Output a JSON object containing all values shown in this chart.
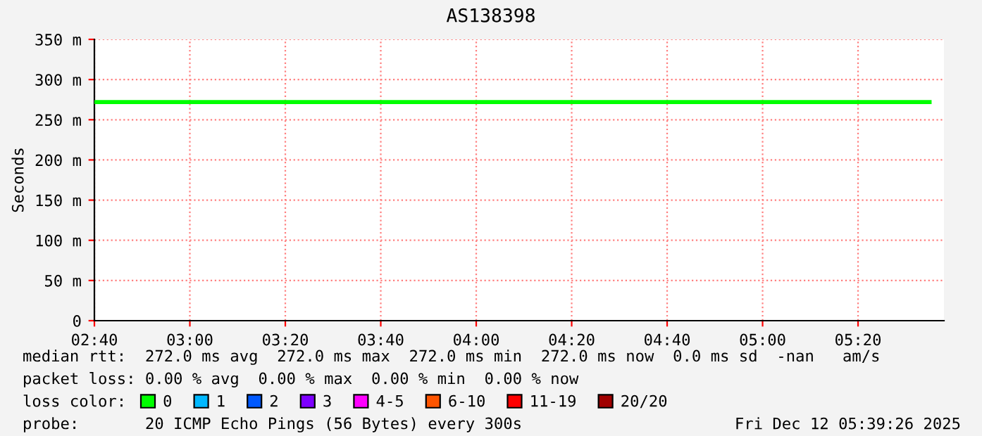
{
  "chart_data": {
    "type": "line",
    "title": "AS138398",
    "ylabel": "Seconds",
    "x": [
      "2025-12-12T02:40",
      "2025-12-12T03:00",
      "2025-12-12T03:20",
      "2025-12-12T03:40",
      "2025-12-12T04:00",
      "2025-12-12T04:20",
      "2025-12-12T04:40",
      "2025-12-12T05:00",
      "2025-12-12T05:20",
      "2025-12-12T05:35"
    ],
    "series": [
      {
        "name": "0",
        "color": "#00ff00",
        "values": [
          272,
          272,
          272,
          272,
          272,
          272,
          272,
          272,
          272,
          272
        ]
      },
      {
        "name": "1",
        "color": "#00b8ff",
        "values": [
          null,
          null,
          null,
          null,
          null,
          null,
          null,
          null,
          null,
          null
        ]
      },
      {
        "name": "2",
        "color": "#0059ff",
        "values": [
          null,
          null,
          null,
          null,
          null,
          null,
          null,
          null,
          null,
          null
        ]
      },
      {
        "name": "3",
        "color": "#7e00ff",
        "values": [
          null,
          null,
          null,
          null,
          null,
          null,
          null,
          null,
          null,
          null
        ]
      },
      {
        "name": "4-5",
        "color": "#ff00ff",
        "values": [
          null,
          null,
          null,
          null,
          null,
          null,
          null,
          null,
          null,
          null
        ]
      },
      {
        "name": "6-10",
        "color": "#ff5500",
        "values": [
          null,
          null,
          null,
          null,
          null,
          null,
          null,
          null,
          null,
          null
        ]
      },
      {
        "name": "11-19",
        "color": "#ff0000",
        "values": [
          null,
          null,
          null,
          null,
          null,
          null,
          null,
          null,
          null,
          null
        ]
      },
      {
        "name": "20/20",
        "color": "#a10000",
        "values": [
          null,
          null,
          null,
          null,
          null,
          null,
          null,
          null,
          null,
          null
        ]
      }
    ],
    "legend_title": "loss color:",
    "legend": "bottom",
    "grid": true,
    "marker": "none",
    "line_style": "solid",
    "xlim": [
      "2025-12-12T02:40",
      "2025-12-12T05:38"
    ],
    "xticks": [
      {
        "value": "2025-12-12T02:40",
        "label": "02:40"
      },
      {
        "value": "2025-12-12T03:00",
        "label": "03:00"
      },
      {
        "value": "2025-12-12T03:20",
        "label": "03:20"
      },
      {
        "value": "2025-12-12T03:40",
        "label": "03:40"
      },
      {
        "value": "2025-12-12T04:00",
        "label": "04:00"
      },
      {
        "value": "2025-12-12T04:20",
        "label": "04:20"
      },
      {
        "value": "2025-12-12T04:40",
        "label": "04:40"
      },
      {
        "value": "2025-12-12T05:00",
        "label": "05:00"
      },
      {
        "value": "2025-12-12T05:20",
        "label": "05:20"
      }
    ],
    "ylim": [
      0,
      350
    ],
    "yticks": [
      0,
      {
        "value": 50,
        "label": "50 m"
      },
      {
        "value": 100,
        "label": "100 m"
      },
      {
        "value": 150,
        "label": "150 m"
      },
      {
        "value": 200,
        "label": "200 m"
      },
      {
        "value": 250,
        "label": "250 m"
      },
      {
        "value": 300,
        "label": "300 m"
      },
      {
        "value": 350,
        "label": "350 m"
      }
    ],
    "annotations": [
      "median rtt:  272.0 ms avg  272.0 ms max  272.0 ms min  272.0 ms now  0.0 ms sd  -nan   am/s",
      "packet loss: 0.00 % avg  0.00 % max  0.00 % min  0.00 % now",
      "probe:       20 ICMP Echo Pings (56 Bytes) every 300s",
      "Fri Dec 12 05:39:26 2025"
    ]
  }
}
